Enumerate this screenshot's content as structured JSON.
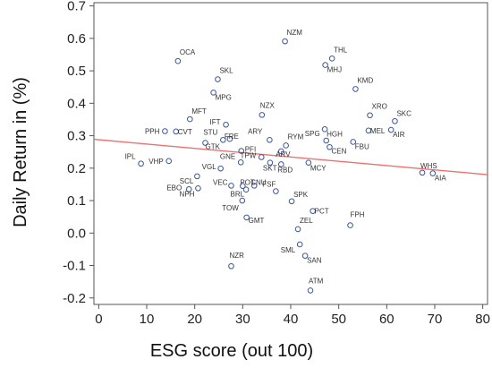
{
  "chart_data": {
    "type": "scatter",
    "xlabel": "ESG score (out 100)",
    "ylabel": "Daily Return in (%)",
    "xlim": [
      -1,
      81
    ],
    "ylim": [
      -0.22,
      0.71
    ],
    "xticks": [
      0,
      10,
      20,
      30,
      40,
      50,
      60,
      70,
      80
    ],
    "yticks": [
      -0.2,
      -0.1,
      0.0,
      0.1,
      0.2,
      0.3,
      0.4,
      0.5,
      0.6,
      0.7
    ],
    "xtick_labels": [
      "0",
      "10",
      "20",
      "30",
      "40",
      "50",
      "60",
      "70",
      "80"
    ],
    "ytick_labels": [
      "-0.2",
      "-0.1",
      "0.0",
      "0.1",
      "0.2",
      "0.3",
      "0.4",
      "0.5",
      "0.6",
      "0.7"
    ],
    "grid": false,
    "colors": {
      "marker": "#3a55a8",
      "trend": "#f07070",
      "axis": "#555555"
    },
    "trendline": {
      "x": [
        -1,
        81
      ],
      "y": [
        0.289,
        0.18
      ]
    },
    "points": [
      {
        "label": "NZM",
        "x": 38.8,
        "y": 0.591
      },
      {
        "label": "THL",
        "x": 48.6,
        "y": 0.538
      },
      {
        "label": "MHJ",
        "x": 47.2,
        "y": 0.518
      },
      {
        "label": "OCA",
        "x": 16.5,
        "y": 0.53
      },
      {
        "label": "SKL",
        "x": 24.8,
        "y": 0.474
      },
      {
        "label": "KMD",
        "x": 53.5,
        "y": 0.444
      },
      {
        "label": "MPG",
        "x": 23.9,
        "y": 0.433
      },
      {
        "label": "NZX",
        "x": 34.0,
        "y": 0.364
      },
      {
        "label": "XRO",
        "x": 56.5,
        "y": 0.363
      },
      {
        "label": "MFT",
        "x": 19.0,
        "y": 0.351
      },
      {
        "label": "SKC",
        "x": 61.7,
        "y": 0.345
      },
      {
        "label": "IFT",
        "x": 26.5,
        "y": 0.334
      },
      {
        "label": "HGH",
        "x": 47.1,
        "y": 0.32
      },
      {
        "label": "MEL",
        "x": 56.2,
        "y": 0.316
      },
      {
        "label": "AIR",
        "x": 60.9,
        "y": 0.318
      },
      {
        "label": "PPH",
        "x": 13.8,
        "y": 0.314
      },
      {
        "label": "CVT",
        "x": 16.1,
        "y": 0.313
      },
      {
        "label": "FRE",
        "x": 27.3,
        "y": 0.29
      },
      {
        "label": "STU",
        "x": 25.9,
        "y": 0.287
      },
      {
        "label": "ARY",
        "x": 35.6,
        "y": 0.287
      },
      {
        "label": "SPG",
        "x": 47.4,
        "y": 0.285
      },
      {
        "label": "GTK",
        "x": 22.2,
        "y": 0.278
      },
      {
        "label": "FBU",
        "x": 53.0,
        "y": 0.281
      },
      {
        "label": "RYM",
        "x": 39.0,
        "y": 0.27
      },
      {
        "label": "CEN",
        "x": 48.1,
        "y": 0.265
      },
      {
        "label": "PFI",
        "x": 29.7,
        "y": 0.253
      },
      {
        "label": "ARV",
        "x": 38.0,
        "y": 0.252
      },
      {
        "label": "TPW",
        "x": 33.9,
        "y": 0.234
      },
      {
        "label": "IPL",
        "x": 8.8,
        "y": 0.214
      },
      {
        "label": "VHP",
        "x": 14.6,
        "y": 0.222
      },
      {
        "label": "GNE",
        "x": 29.6,
        "y": 0.218
      },
      {
        "label": "SKT",
        "x": 35.7,
        "y": 0.217
      },
      {
        "label": "RBD",
        "x": 38.0,
        "y": 0.212
      },
      {
        "label": "MCY",
        "x": 43.7,
        "y": 0.217
      },
      {
        "label": "WHS",
        "x": 67.4,
        "y": 0.186
      },
      {
        "label": "AIA",
        "x": 69.6,
        "y": 0.184
      },
      {
        "label": "VGL",
        "x": 25.4,
        "y": 0.199
      },
      {
        "label": "SCL",
        "x": 20.5,
        "y": 0.175
      },
      {
        "label": "VEC",
        "x": 27.6,
        "y": 0.146
      },
      {
        "label": "POT",
        "x": 30.0,
        "y": 0.145
      },
      {
        "label": "CNU",
        "x": 32.4,
        "y": 0.146
      },
      {
        "label": "BRL",
        "x": 30.7,
        "y": 0.134
      },
      {
        "label": "EBO",
        "x": 18.8,
        "y": 0.135
      },
      {
        "label": "NPH",
        "x": 20.7,
        "y": 0.138
      },
      {
        "label": "FSF",
        "x": 36.9,
        "y": 0.129
      },
      {
        "label": "SPK",
        "x": 40.2,
        "y": 0.098
      },
      {
        "label": "TOW",
        "x": 29.9,
        "y": 0.1
      },
      {
        "label": "PCT",
        "x": 44.6,
        "y": 0.068
      },
      {
        "label": "GMT",
        "x": 30.8,
        "y": 0.048
      },
      {
        "label": "ZEL",
        "x": 41.5,
        "y": 0.012
      },
      {
        "label": "FPH",
        "x": 52.4,
        "y": 0.024
      },
      {
        "label": "SML",
        "x": 41.9,
        "y": -0.035
      },
      {
        "label": "SAN",
        "x": 43.0,
        "y": -0.07
      },
      {
        "label": "NZR",
        "x": 27.6,
        "y": -0.102
      },
      {
        "label": "ATM",
        "x": 44.1,
        "y": -0.177
      }
    ]
  }
}
